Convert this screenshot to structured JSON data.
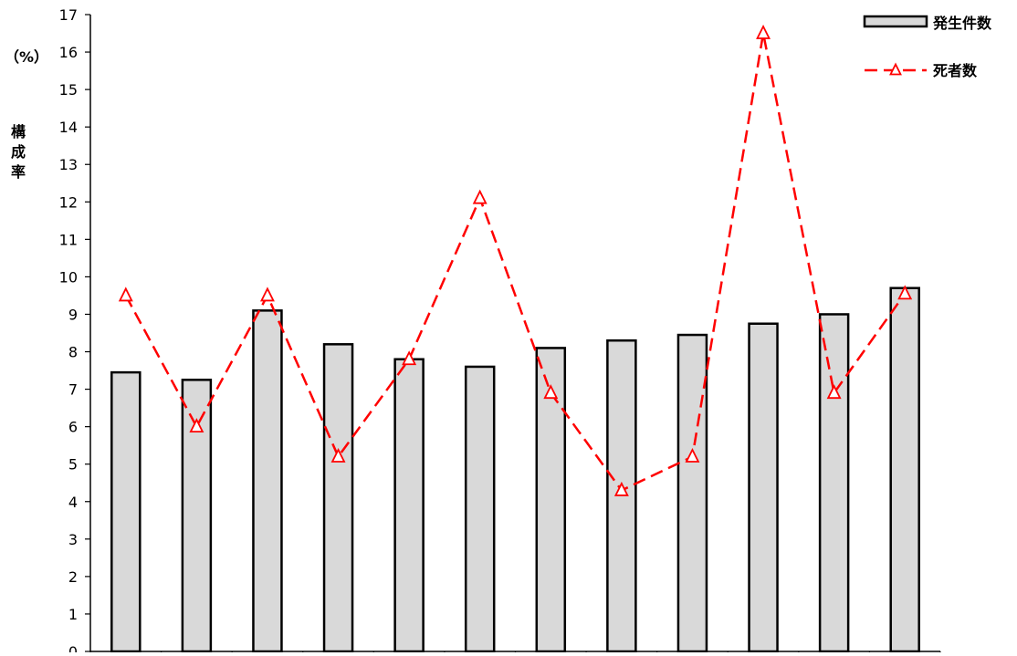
{
  "chart_data": {
    "type": "bar",
    "title": "",
    "xlabel": "",
    "ylabel": "構成率",
    "y_unit": "（%）",
    "ylim": [
      0,
      17
    ],
    "y_ticks": [
      "0",
      "1",
      "2",
      "3",
      "4",
      "5",
      "6",
      "7",
      "8",
      "9",
      "10",
      "11",
      "12",
      "13",
      "14",
      "15",
      "16",
      "17"
    ],
    "grid": false,
    "legend_position": "top-right",
    "categories": [
      "",
      "",
      "",
      "",
      "",
      "",
      "",
      "",
      "",
      "",
      "",
      ""
    ],
    "series": [
      {
        "name": "発生件数",
        "type": "bar",
        "color": "#d9d9d9",
        "values": [
          7.45,
          7.25,
          9.1,
          8.2,
          7.8,
          7.6,
          8.1,
          8.3,
          8.45,
          8.75,
          9.0,
          9.7
        ]
      },
      {
        "name": "死者数",
        "type": "line",
        "color": "#ff0000",
        "line_style": "dashed",
        "marker": "triangle-open",
        "values": [
          9.5,
          6.0,
          9.5,
          5.2,
          7.8,
          12.1,
          6.9,
          4.3,
          5.2,
          16.5,
          6.9,
          9.55
        ]
      }
    ]
  }
}
